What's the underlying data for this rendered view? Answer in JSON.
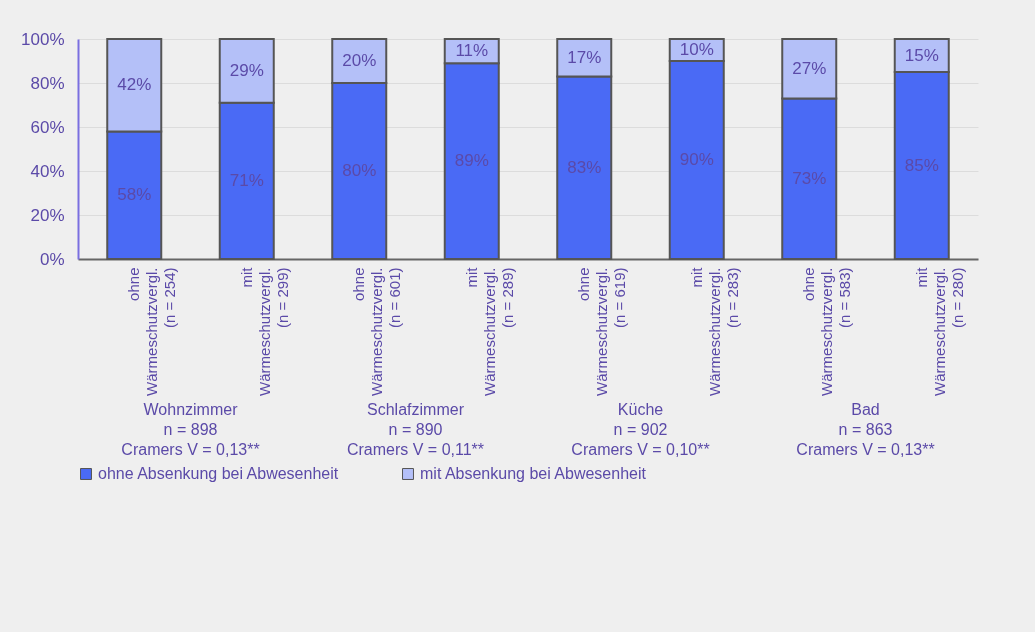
{
  "chart_data": {
    "type": "bar",
    "stacked": true,
    "categories": [
      "ohne\nWärmeschutzvergl.\n(n = 254)",
      "mit\nWärmeschutzvergl.\n(n = 299)",
      "ohne\nWärmeschutzvergl.\n(n = 601)",
      "mit\nWärmeschutzvergl.\n(n = 289)",
      "ohne\nWärmeschutzvergl.\n(n = 619)",
      "mit\nWärmeschutzvergl.\n(n = 283)",
      "ohne\nWärmeschutzvergl.\n(n = 583)",
      "mit\nWärmeschutzvergl.\n(n = 280)"
    ],
    "series": [
      {
        "name": "ohne Absenkung bei Abwesenheit",
        "color": "#4a6af5",
        "values": [
          58,
          71,
          80,
          89,
          83,
          90,
          73,
          85
        ],
        "value_labels": [
          "58%",
          "71%",
          "80%",
          "89%",
          "83%",
          "90%",
          "73%",
          "85%"
        ]
      },
      {
        "name": "mit Absenkung bei Abwesenheit",
        "color": "#b4c0f8",
        "values": [
          42,
          29,
          20,
          11,
          17,
          10,
          27,
          15
        ],
        "value_labels": [
          "42%",
          "29%",
          "20%",
          "11%",
          "17%",
          "10%",
          "27%",
          "15%"
        ]
      }
    ],
    "ylim": [
      0,
      100
    ],
    "yticks": [
      {
        "value": 0,
        "label": "0%"
      },
      {
        "value": 20,
        "label": "20%"
      },
      {
        "value": 40,
        "label": "40%"
      },
      {
        "value": 60,
        "label": "60%"
      },
      {
        "value": 80,
        "label": "80%"
      },
      {
        "value": 100,
        "label": "100%"
      }
    ],
    "grid": true,
    "legend": "bottom",
    "annotations": [
      "Wohnzimmer\nn = 898\nCramers V = 0,13**",
      "Schlafzimmer\nn = 890\nCramers V = 0,11**",
      "Küche\nn = 902\nCramers V = 0,10**",
      "Bad\nn = 863\nCramers V = 0,13**"
    ]
  }
}
